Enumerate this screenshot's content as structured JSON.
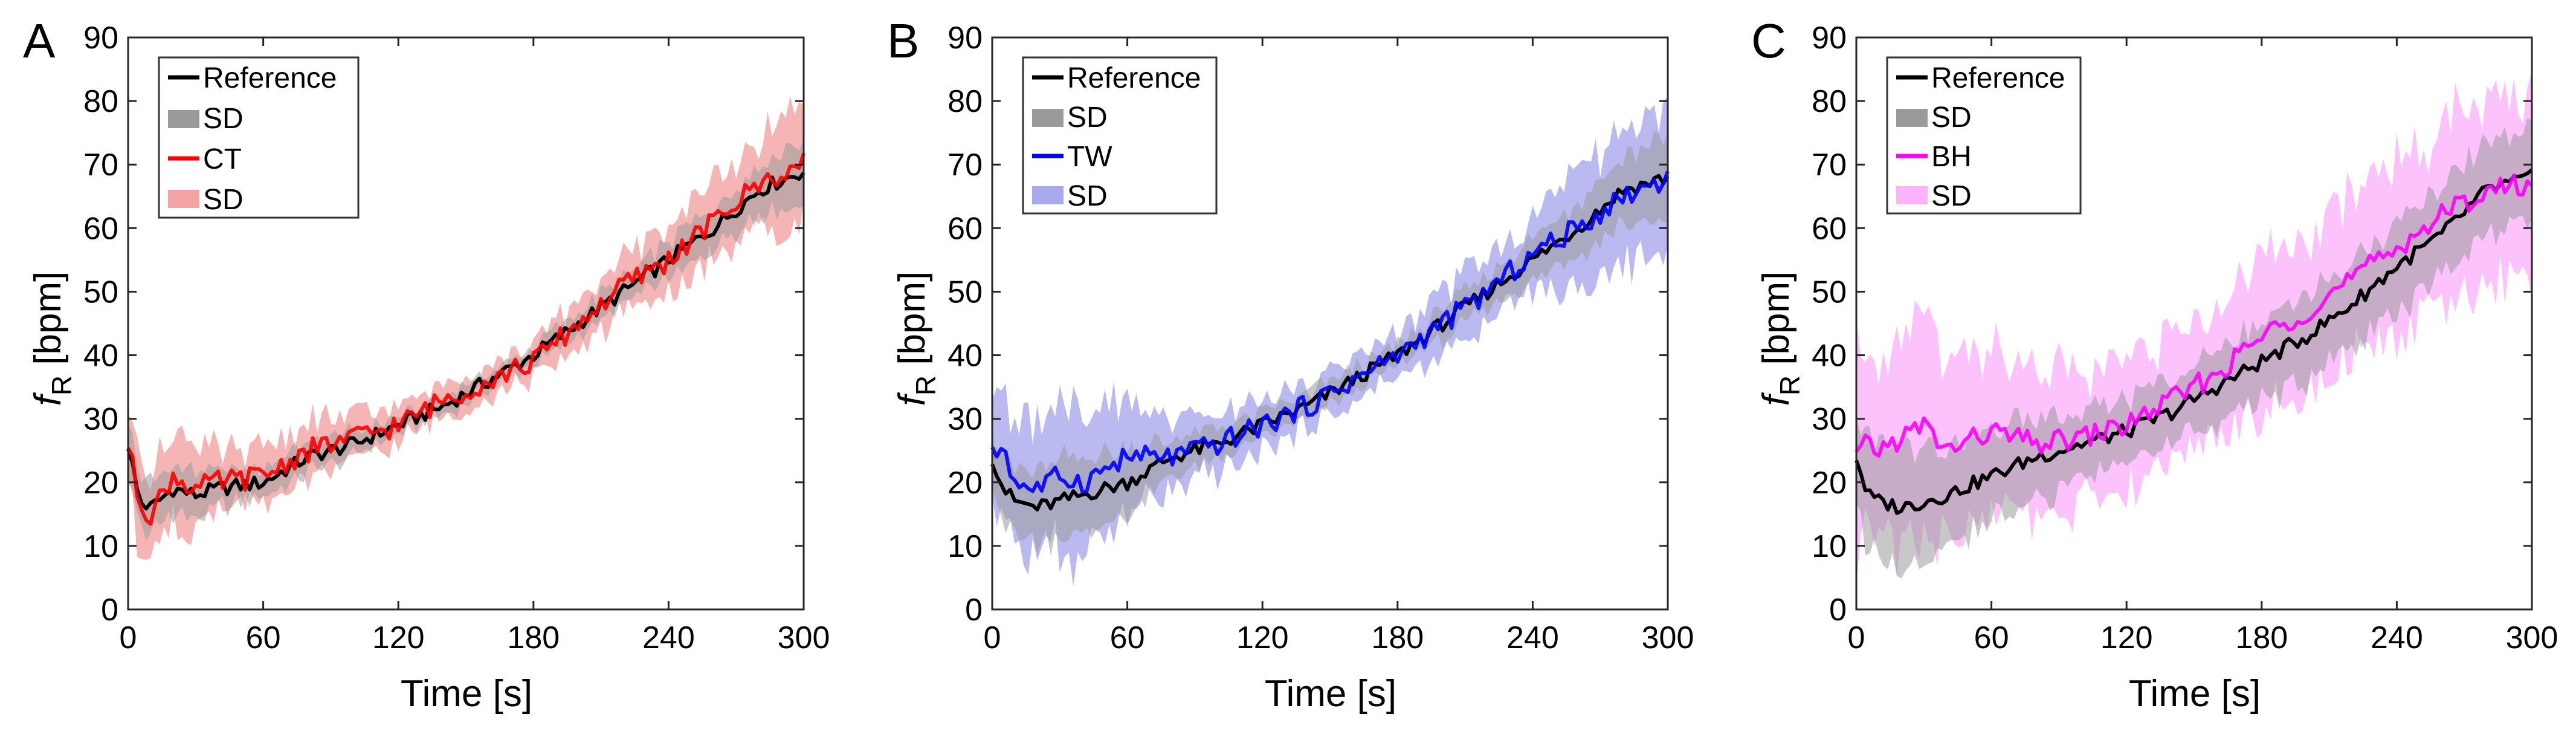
{
  "chart_data": [
    {
      "panel": "A",
      "type": "line",
      "xlabel": "Time [s]",
      "ylabel_main": "f",
      "ylabel_sub": "R",
      "ylabel_unit": " [bpm]",
      "xlim": [
        0,
        300
      ],
      "ylim": [
        0,
        90
      ],
      "xticks": [
        "0",
        "60",
        "120",
        "180",
        "240",
        "300"
      ],
      "yticks": [
        "0",
        "10",
        "20",
        "30",
        "40",
        "50",
        "60",
        "70",
        "80",
        "90"
      ],
      "legend": [
        "Reference",
        "SD",
        "CT",
        "SD"
      ],
      "colors": {
        "reference": "#000000",
        "reference_sd": "#9a9a9a",
        "method": "#ff0000",
        "method_sd": "#f4a3a3"
      },
      "series": [
        {
          "name": "Reference",
          "x": [
            0,
            5,
            10,
            20,
            30,
            40,
            60,
            80,
            100,
            120,
            140,
            160,
            180,
            200,
            220,
            240,
            260,
            280,
            300
          ],
          "values": [
            26,
            17,
            16,
            19,
            18,
            19,
            20,
            24,
            26,
            29,
            32,
            36,
            40,
            45,
            50,
            55,
            60,
            66,
            69
          ]
        },
        {
          "name": "CT",
          "x": [
            0,
            5,
            10,
            20,
            30,
            40,
            60,
            80,
            100,
            120,
            140,
            160,
            180,
            200,
            220,
            240,
            260,
            280,
            300
          ],
          "values": [
            26,
            17,
            15,
            21,
            19,
            20,
            21,
            25,
            27,
            29,
            33,
            36,
            39,
            45,
            51,
            55,
            61,
            67,
            70
          ]
        }
      ],
      "sd": {
        "x": [
          0,
          20,
          40,
          60,
          80,
          100,
          120,
          140,
          160,
          180,
          200,
          220,
          240,
          260,
          280,
          300
        ],
        "spread": [
          9,
          8,
          6,
          5,
          5,
          4,
          3,
          3,
          3,
          3,
          4,
          5,
          6,
          7,
          8,
          10
        ]
      }
    },
    {
      "panel": "B",
      "type": "line",
      "xlabel": "Time [s]",
      "ylabel_main": "f",
      "ylabel_sub": "R",
      "ylabel_unit": " [bpm]",
      "xlim": [
        0,
        300
      ],
      "ylim": [
        0,
        90
      ],
      "xticks": [
        "0",
        "60",
        "120",
        "180",
        "240",
        "300"
      ],
      "yticks": [
        "0",
        "10",
        "20",
        "30",
        "40",
        "50",
        "60",
        "70",
        "80",
        "90"
      ],
      "legend": [
        "Reference",
        "SD",
        "TW",
        "SD"
      ],
      "colors": {
        "reference": "#000000",
        "reference_sd": "#9a9a9a",
        "method": "#0000ff",
        "method_sd": "#a9a9ee"
      },
      "series": [
        {
          "name": "Reference",
          "x": [
            0,
            5,
            10,
            20,
            30,
            40,
            60,
            80,
            100,
            120,
            140,
            160,
            180,
            200,
            220,
            240,
            260,
            280,
            300
          ],
          "values": [
            24,
            19,
            17,
            16,
            17,
            18,
            20,
            24,
            26,
            29,
            32,
            36,
            40,
            45,
            50,
            55,
            60,
            66,
            68
          ]
        },
        {
          "name": "TW",
          "x": [
            0,
            5,
            10,
            20,
            30,
            40,
            60,
            80,
            100,
            120,
            140,
            160,
            180,
            200,
            220,
            240,
            260,
            280,
            300
          ],
          "values": [
            24,
            26,
            20,
            19,
            21,
            20,
            24,
            24,
            26,
            29,
            32,
            36,
            40,
            45,
            50,
            56,
            60,
            65,
            68
          ]
        }
      ],
      "sd": {
        "x": [
          0,
          20,
          40,
          60,
          80,
          100,
          120,
          140,
          160,
          180,
          200,
          220,
          240,
          260,
          280,
          300
        ],
        "spread": [
          10,
          12,
          14,
          11,
          6,
          5,
          4,
          4,
          4,
          4,
          5,
          6,
          7,
          9,
          11,
          13
        ]
      }
    },
    {
      "panel": "C",
      "type": "line",
      "xlabel": "Time [s]",
      "ylabel_main": "f",
      "ylabel_sub": "R",
      "ylabel_unit": " [bpm]",
      "xlim": [
        0,
        300
      ],
      "ylim": [
        0,
        90
      ],
      "xticks": [
        "0",
        "60",
        "120",
        "180",
        "240",
        "300"
      ],
      "yticks": [
        "0",
        "10",
        "20",
        "30",
        "40",
        "50",
        "60",
        "70",
        "80",
        "90"
      ],
      "legend": [
        "Reference",
        "SD",
        "BH",
        "SD"
      ],
      "colors": {
        "reference": "#000000",
        "reference_sd": "#9a9a9a",
        "method": "#ff00ff",
        "method_sd": "#fbb3fb"
      },
      "series": [
        {
          "name": "Reference",
          "x": [
            0,
            5,
            10,
            20,
            30,
            40,
            60,
            80,
            100,
            120,
            140,
            160,
            180,
            200,
            220,
            240,
            260,
            280,
            300
          ],
          "values": [
            24,
            18,
            17,
            16,
            17,
            18,
            21,
            24,
            26,
            28,
            31,
            35,
            39,
            43,
            48,
            54,
            59,
            66,
            68
          ]
        },
        {
          "name": "BH",
          "x": [
            0,
            5,
            10,
            20,
            30,
            40,
            60,
            80,
            100,
            120,
            140,
            160,
            180,
            200,
            220,
            240,
            260,
            280,
            300
          ],
          "values": [
            24,
            26,
            25,
            27,
            29,
            25,
            28,
            26,
            27,
            29,
            33,
            37,
            43,
            47,
            52,
            57,
            62,
            66,
            67
          ]
        }
      ],
      "sd": {
        "x": [
          0,
          20,
          40,
          60,
          80,
          100,
          120,
          140,
          160,
          180,
          200,
          220,
          240,
          260,
          280,
          300
        ],
        "spread": [
          18,
          18,
          17,
          15,
          14,
          12,
          11,
          11,
          12,
          13,
          14,
          14,
          15,
          15,
          16,
          16
        ]
      }
    }
  ]
}
